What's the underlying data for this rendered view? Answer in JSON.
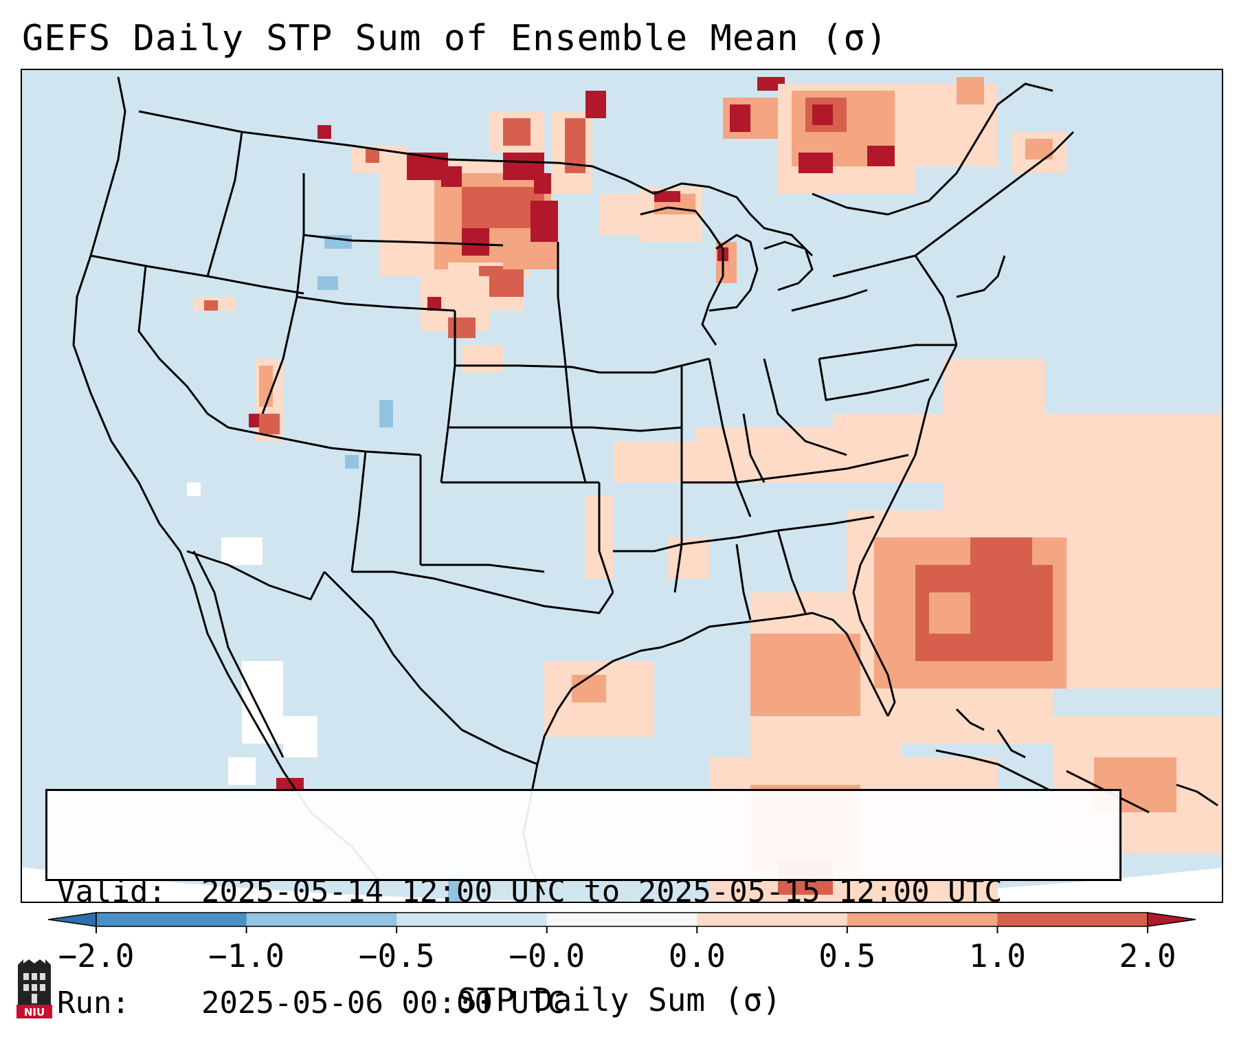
{
  "title": "GEFS Daily STP Sum of Ensemble Mean (σ)",
  "info": {
    "valid_label": "Valid:",
    "valid_value": "2025-05-14 12:00 UTC to 2025-05-15 12:00 UTC",
    "run_label": "Run:",
    "run_value": "2025-05-06 00:00 UTC"
  },
  "colorbar": {
    "label": "STP Daily Sum (σ)",
    "ticks": [
      "−2.0",
      "−1.0",
      "−0.5",
      "−0.0",
      "0.0",
      "0.5",
      "1.0",
      "2.0"
    ],
    "bins": [
      {
        "from": -2.0,
        "to": -1.0,
        "color": "#4a8fc6"
      },
      {
        "from": -1.0,
        "to": -0.5,
        "color": "#92c4e0"
      },
      {
        "from": -0.5,
        "to": -0.0,
        "color": "#d1e5f0"
      },
      {
        "from": -0.0,
        "to": 0.0,
        "color": "#f7f7f7"
      },
      {
        "from": 0.0,
        "to": 0.5,
        "color": "#fddbc7"
      },
      {
        "from": 0.5,
        "to": 1.0,
        "color": "#f4a582"
      },
      {
        "from": 1.0,
        "to": 2.0,
        "color": "#d6604d"
      }
    ],
    "under_color": "#2f6fb0",
    "over_color": "#b2182b"
  },
  "map": {
    "background_color": "#d1e5f0",
    "outline_color": "#000000"
  },
  "logo": {
    "text": "NIU",
    "color": "#c8102e"
  }
}
